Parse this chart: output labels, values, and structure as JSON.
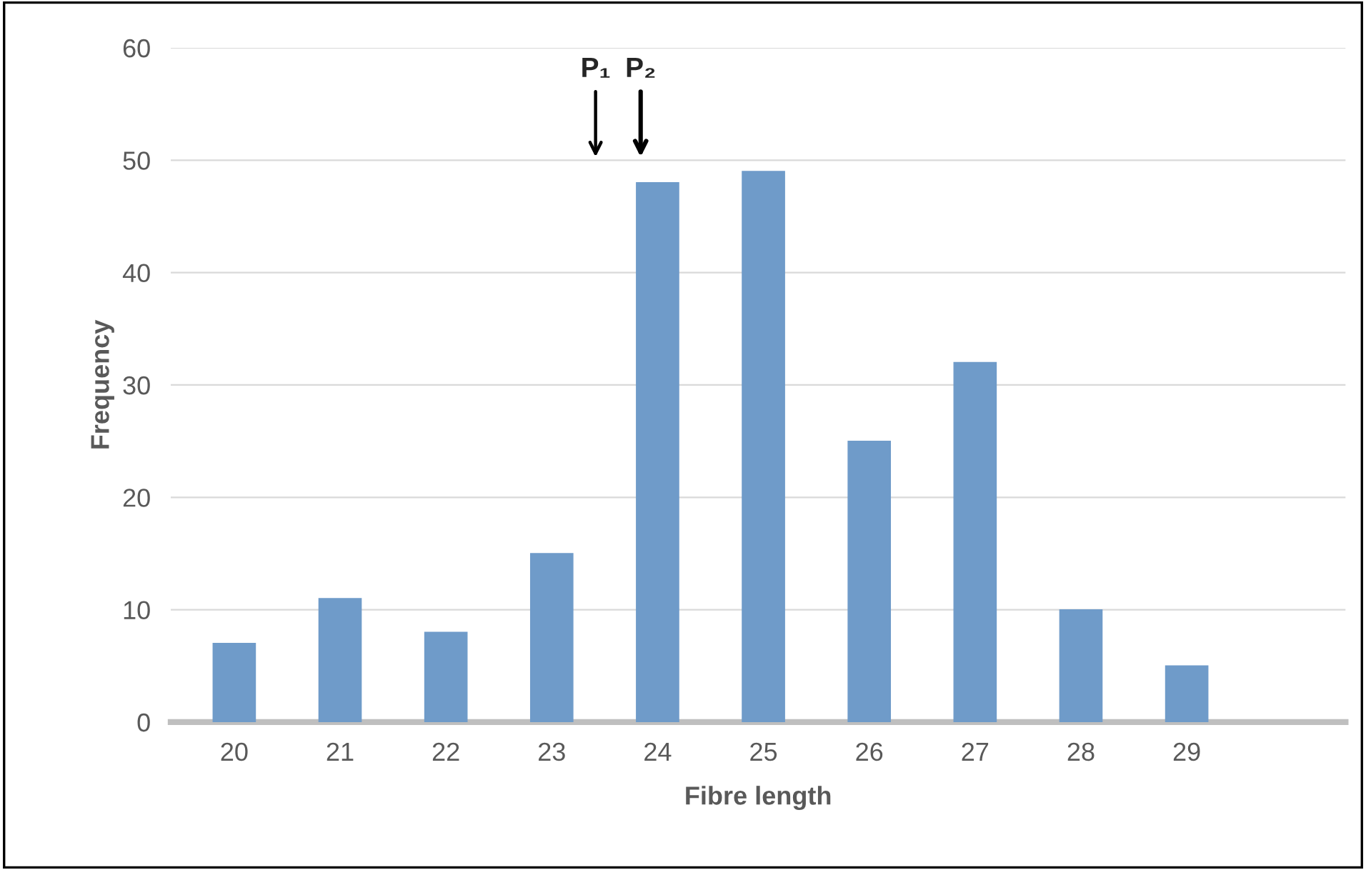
{
  "chart_data": {
    "type": "bar",
    "xlabel": "Fibre length",
    "ylabel": "Frequency",
    "categories": [
      "20",
      "21",
      "22",
      "23",
      "24",
      "25",
      "26",
      "27",
      "28",
      "29",
      null
    ],
    "values": [
      7,
      11,
      8,
      15,
      48,
      49,
      25,
      32,
      10,
      5,
      null
    ],
    "color": "#6f9bc9",
    "ylim": [
      0,
      60
    ],
    "yticks": [
      0,
      10,
      20,
      30,
      40,
      50,
      60
    ],
    "grid": "y",
    "annotations": [
      "P₁",
      "P₂"
    ]
  }
}
